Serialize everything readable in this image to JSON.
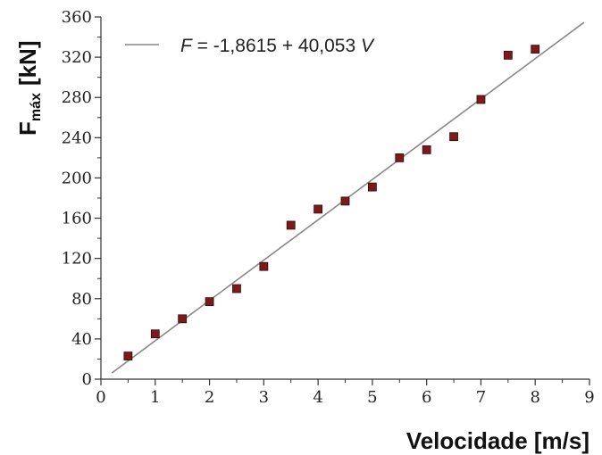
{
  "chart_data": {
    "type": "scatter",
    "xlabel": "Velocidade [m/s]",
    "ylabel_main": "F",
    "ylabel_sub": "máx",
    "ylabel_unit": "[kN]",
    "xlim": [
      0,
      9
    ],
    "ylim": [
      0,
      360
    ],
    "x_ticks": [
      "0",
      "1",
      "2",
      "3",
      "4",
      "5",
      "6",
      "7",
      "8",
      "9"
    ],
    "y_ticks": [
      "0",
      "40",
      "80",
      "120",
      "160",
      "200",
      "240",
      "280",
      "320",
      "360"
    ],
    "legend": {
      "position": "top-left",
      "var": "F",
      "text": " = -1,8615 + 40,053 ",
      "var2": "V"
    },
    "fit": {
      "intercept": -1.8615,
      "slope": 40.053,
      "x_range": [
        0.2,
        8.9
      ]
    },
    "series": [
      {
        "points": [
          [
            0.5,
            23
          ],
          [
            1.0,
            45
          ],
          [
            1.5,
            60
          ],
          [
            2.0,
            77
          ],
          [
            2.5,
            90
          ],
          [
            3.0,
            112
          ],
          [
            3.5,
            153
          ],
          [
            4.0,
            169
          ],
          [
            4.5,
            177
          ],
          [
            5.0,
            191
          ],
          [
            5.5,
            220
          ],
          [
            6.0,
            228
          ],
          [
            6.5,
            241
          ],
          [
            7.0,
            278
          ],
          [
            7.5,
            322
          ],
          [
            8.0,
            328
          ]
        ],
        "color": "#7a1a1a"
      }
    ],
    "line_color": "#888888",
    "grid": false
  }
}
